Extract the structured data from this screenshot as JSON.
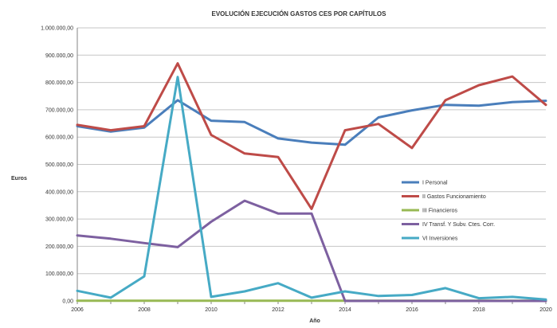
{
  "chart_data": {
    "type": "line",
    "title": "EVOLUCIÓN EJECUCIÓN GASTOS CES POR CAPÍTULOS",
    "xlabel": "Año",
    "ylabel": "Euros",
    "x": [
      2006,
      2007,
      2008,
      2009,
      2010,
      2011,
      2012,
      2013,
      2014,
      2015,
      2016,
      2017,
      2018,
      2019,
      2020
    ],
    "xticks": [
      2006,
      2008,
      2010,
      2012,
      2014,
      2016,
      2018,
      2020
    ],
    "xlim": [
      2006,
      2020
    ],
    "ylim": [
      0,
      1000000
    ],
    "yticks": [
      0,
      100000,
      200000,
      300000,
      400000,
      500000,
      600000,
      700000,
      800000,
      900000,
      1000000
    ],
    "ytick_labels": [
      "0,00",
      "100.000,00",
      "200.000,00",
      "300.000,00",
      "400.000,00",
      "500.000,00",
      "600.000,00",
      "700.000,00",
      "800.000,00",
      "900.000,00",
      "1.000.000,00"
    ],
    "grid": true,
    "legend_position": "right",
    "series": [
      {
        "name": "I Personal",
        "color": "#4a7ebb",
        "values": [
          640000,
          620000,
          635000,
          735000,
          660000,
          655000,
          595000,
          580000,
          572000,
          672000,
          698000,
          718000,
          715000,
          728000,
          733000
        ]
      },
      {
        "name": "II Gastos Funcionamiento",
        "color": "#be4b48",
        "values": [
          645000,
          625000,
          640000,
          870000,
          608000,
          540000,
          527000,
          337000,
          625000,
          648000,
          560000,
          735000,
          790000,
          822000,
          718000
        ]
      },
      {
        "name": "III Financieros",
        "color": "#98b954",
        "values": [
          1000,
          1000,
          1000,
          1000,
          1000,
          1000,
          1000,
          1000,
          1000,
          1000,
          1000,
          1000,
          1000,
          1000,
          1000
        ]
      },
      {
        "name": "IV Transf. Y Subv. Ctes. Corr.",
        "color": "#7d60a0",
        "values": [
          240000,
          228000,
          212000,
          197000,
          290000,
          367000,
          320000,
          320000,
          0,
          0,
          0,
          0,
          0,
          0,
          0
        ]
      },
      {
        "name": "VI Inversiones",
        "color": "#46aac5",
        "values": [
          37000,
          12000,
          90000,
          820000,
          15000,
          35000,
          65000,
          12000,
          35000,
          18000,
          22000,
          47000,
          10000,
          15000,
          5000
        ]
      }
    ]
  }
}
